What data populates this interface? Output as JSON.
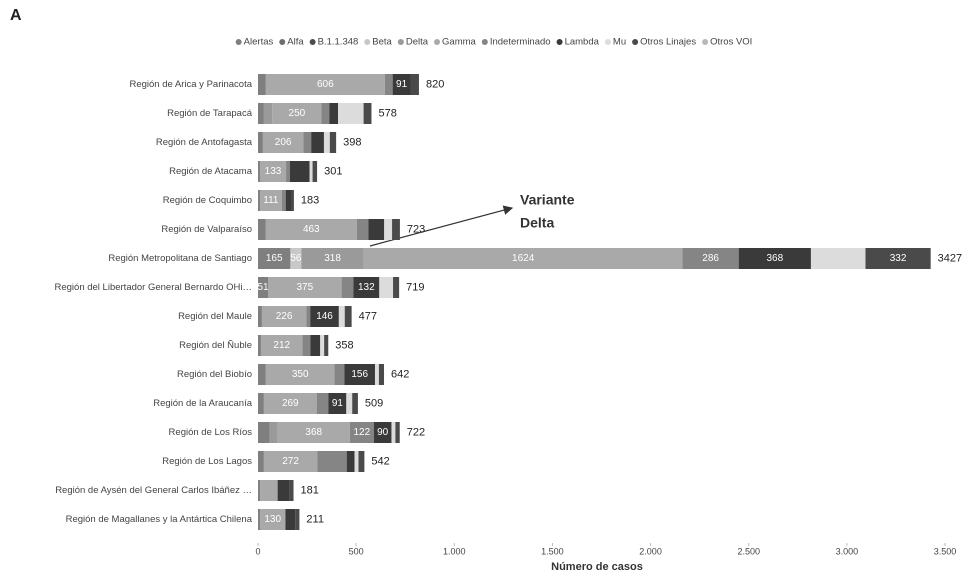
{
  "chart_data": {
    "type": "stacked-barh",
    "panel_label": "A",
    "x_label": "Número de casos",
    "annotation": {
      "lines": [
        "Variante",
        "Delta"
      ]
    },
    "categories": [
      "Región de Arica y Parinacota",
      "Región de Tarapacá",
      "Región de Antofagasta",
      "Región de Atacama",
      "Región de Coquimbo",
      "Región de Valparaíso",
      "Región Metropolitana de Santiago",
      "Región del Libertador General Bernardo OHi…",
      "Región del Maule",
      "Región del Ñuble",
      "Región del Biobío",
      "Región de la Araucanía",
      "Región de Los Ríos",
      "Región de Los Lagos",
      "Región de Aysén del General Carlos Ibáñez …",
      "Región de Magallanes y la Antártica Chilena"
    ],
    "totals": [
      820,
      578,
      398,
      301,
      183,
      723,
      3427,
      719,
      477,
      358,
      642,
      509,
      722,
      542,
      181,
      211
    ],
    "series": [
      {
        "name": "Alertas",
        "color": "#7f7f7f",
        "values": [
          40,
          30,
          25,
          10,
          10,
          40,
          165,
          51,
          20,
          15,
          40,
          30,
          60,
          30,
          10,
          10
        ],
        "value_labels": [
          null,
          null,
          null,
          null,
          null,
          null,
          "165",
          "51",
          null,
          null,
          null,
          null,
          null,
          null,
          null,
          null
        ]
      },
      {
        "name": "Alfa",
        "color": "#6e6e6e",
        "values": [
          0,
          0,
          0,
          0,
          0,
          0,
          0,
          0,
          0,
          0,
          0,
          0,
          0,
          0,
          0,
          0
        ]
      },
      {
        "name": "B.1.1.348",
        "color": "#4d4d4d",
        "values": [
          0,
          0,
          0,
          0,
          0,
          0,
          0,
          0,
          0,
          0,
          0,
          0,
          0,
          0,
          0,
          0
        ]
      },
      {
        "name": "Beta",
        "color": "#c8c8c8",
        "values": [
          0,
          0,
          0,
          0,
          0,
          0,
          56,
          0,
          0,
          0,
          0,
          0,
          0,
          0,
          0,
          0
        ],
        "value_labels": [
          null,
          null,
          null,
          null,
          null,
          null,
          "56",
          null,
          null,
          null,
          null,
          null,
          null,
          null,
          null,
          null
        ]
      },
      {
        "name": "Delta",
        "color": "#9a9a9a",
        "values": [
          0,
          43,
          0,
          0,
          0,
          0,
          318,
          0,
          0,
          0,
          0,
          0,
          40,
          0,
          0,
          0
        ],
        "value_labels": [
          null,
          null,
          null,
          null,
          null,
          null,
          "318",
          null,
          null,
          null,
          null,
          null,
          null,
          null,
          null,
          null
        ]
      },
      {
        "name": "Gamma",
        "color": "#a9a9a9",
        "values": [
          606,
          250,
          206,
          133,
          111,
          463,
          1624,
          375,
          226,
          212,
          350,
          269,
          368,
          272,
          90,
          130
        ],
        "value_labels": [
          "606",
          "250",
          "206",
          "133",
          "111",
          "463",
          "1624",
          "375",
          "226",
          "212",
          "350",
          "269",
          "368",
          "272",
          null,
          "130"
        ]
      },
      {
        "name": "Indeterminado",
        "color": "#858585",
        "values": [
          40,
          40,
          40,
          20,
          20,
          60,
          286,
          60,
          20,
          40,
          50,
          60,
          122,
          150,
          0,
          0
        ],
        "value_labels": [
          null,
          null,
          null,
          null,
          null,
          null,
          "286",
          null,
          null,
          null,
          null,
          null,
          "122",
          null,
          null,
          null
        ]
      },
      {
        "name": "Lambda",
        "color": "#3a3a3a",
        "values": [
          91,
          45,
          65,
          100,
          30,
          80,
          368,
          132,
          146,
          50,
          156,
          91,
          90,
          40,
          60,
          50
        ],
        "value_labels": [
          "91",
          null,
          null,
          null,
          null,
          null,
          "368",
          "132",
          "146",
          null,
          "156",
          "91",
          "90",
          null,
          null,
          null
        ]
      },
      {
        "name": "Mu",
        "color": "#dcdcdc",
        "values": [
          0,
          130,
          30,
          15,
          0,
          40,
          278,
          70,
          30,
          20,
          20,
          30,
          20,
          20,
          0,
          0
        ]
      },
      {
        "name": "Otros Linajes",
        "color": "#4a4a4a",
        "values": [
          43,
          40,
          32,
          23,
          12,
          40,
          332,
          31,
          35,
          21,
          26,
          29,
          22,
          30,
          21,
          21
        ],
        "value_labels": [
          null,
          null,
          null,
          null,
          null,
          null,
          "332",
          null,
          null,
          null,
          null,
          null,
          null,
          null,
          null,
          null
        ]
      },
      {
        "name": "Otros VOI",
        "color": "#b8b8b8",
        "values": [
          0,
          0,
          0,
          0,
          0,
          0,
          0,
          0,
          0,
          0,
          0,
          0,
          0,
          0,
          0,
          0
        ]
      }
    ],
    "xlim": [
      0,
      3500
    ],
    "xticks": [
      0,
      500,
      {
        "value": 1000,
        "label": "1.000"
      },
      {
        "value": 1500,
        "label": "1.500"
      },
      {
        "value": 2000,
        "label": "2.000"
      },
      {
        "value": 2500,
        "label": "2.500"
      },
      {
        "value": 3000,
        "label": "3.000"
      },
      {
        "value": 3500,
        "label": "3.500"
      }
    ],
    "grid": false
  }
}
